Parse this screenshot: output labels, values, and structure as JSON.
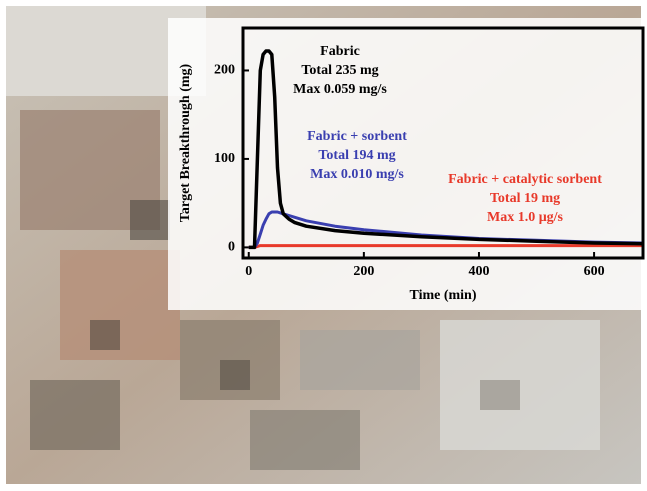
{
  "chart_data": {
    "type": "line",
    "xlabel": "Time (min)",
    "ylabel": "Target Breakthrough (mg)",
    "x": [
      0,
      10,
      15,
      20,
      25,
      30,
      35,
      40,
      45,
      50,
      55,
      60,
      70,
      80,
      100,
      150,
      200,
      300,
      400,
      500,
      600,
      685
    ],
    "series": [
      {
        "name": "Fabric",
        "color": "#000000",
        "label_lines": [
          "Total 235 mg",
          "Max 0.059 mg/s"
        ],
        "values": [
          0,
          0,
          100,
          200,
          218,
          222,
          222,
          218,
          170,
          90,
          50,
          38,
          32,
          28,
          24,
          19,
          16,
          12,
          9,
          7,
          5,
          4
        ]
      },
      {
        "name": "Fabric + sorbent",
        "color": "#3a3fb0",
        "label_lines": [
          "Total 194 mg",
          "Max 0.010 mg/s"
        ],
        "values": [
          0,
          0,
          5,
          15,
          25,
          32,
          38,
          40,
          40,
          40,
          39,
          38,
          36,
          34,
          30,
          24,
          20,
          14,
          10,
          8,
          6,
          5
        ]
      },
      {
        "name": "Fabric + catalytic sorbent",
        "color": "#e8392a",
        "label_lines": [
          "Total 19 mg",
          "Max 1.0 μg/s"
        ],
        "values": [
          0,
          0,
          1,
          2,
          2,
          2,
          2,
          2,
          2,
          2,
          2,
          2,
          2,
          2,
          2,
          2,
          2,
          2,
          2,
          2,
          2,
          2
        ]
      }
    ],
    "xlim": [
      -10,
      685
    ],
    "xticks": [
      0,
      200,
      400,
      600
    ],
    "ylim": [
      -12,
      248
    ],
    "yticks": [
      0,
      100,
      200
    ]
  }
}
